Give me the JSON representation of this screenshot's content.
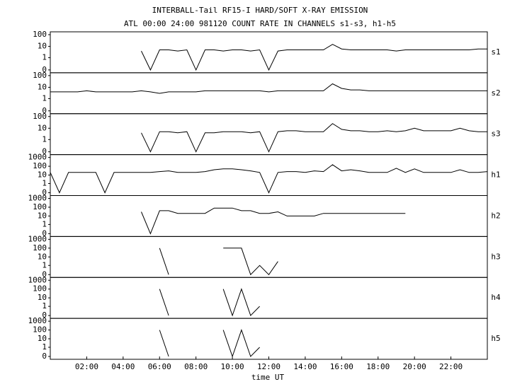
{
  "chart_data": [
    {
      "type": "line",
      "title": "INTERBALL-Tail RF15-I HARD/SOFT X-RAY EMISSION",
      "subtitle": "ATL 00:00 24:00 981120  COUNT RATE IN CHANNELS s1-s3, h1-h5",
      "label": "s1",
      "color": "#000000",
      "yscale": "log",
      "xlim": [
        0,
        24
      ],
      "ylim": [
        0,
        100
      ],
      "yticks": [
        0,
        1,
        10,
        100
      ],
      "x": [
        0,
        0.5,
        1,
        1.5,
        2,
        2.5,
        3,
        3.5,
        4,
        4.5,
        5,
        5.5,
        6,
        6.5,
        7,
        7.5,
        8,
        8.5,
        9,
        9.5,
        10,
        10.5,
        11,
        11.5,
        12,
        12.5,
        13,
        13.5,
        14,
        14.5,
        15,
        15.5,
        16,
        16.5,
        17,
        17.5,
        18,
        18.5,
        19,
        19.5,
        20,
        20.5,
        21,
        21.5,
        22,
        22.5,
        23,
        23.5,
        24
      ],
      "values": [
        null,
        null,
        null,
        null,
        null,
        null,
        null,
        null,
        null,
        null,
        4,
        0,
        5,
        5,
        4,
        5,
        0,
        5,
        5,
        4,
        5,
        5,
        4,
        5,
        0,
        4,
        5,
        5,
        5,
        5,
        5,
        15,
        6,
        5,
        5,
        5,
        5,
        5,
        4,
        5,
        5,
        5,
        5,
        5,
        5,
        5,
        5,
        6,
        6
      ]
    },
    {
      "type": "line",
      "label": "s2",
      "color": "#000000",
      "yscale": "log",
      "xlim": [
        0,
        24
      ],
      "ylim": [
        0,
        100
      ],
      "yticks": [
        0,
        1,
        10,
        100
      ],
      "x": [
        0,
        0.5,
        1,
        1.5,
        2,
        2.5,
        3,
        3.5,
        4,
        4.5,
        5,
        5.5,
        6,
        6.5,
        7,
        7.5,
        8,
        8.5,
        9,
        9.5,
        10,
        10.5,
        11,
        11.5,
        12,
        12.5,
        13,
        13.5,
        14,
        14.5,
        15,
        15.5,
        16,
        16.5,
        17,
        17.5,
        18,
        18.5,
        19,
        19.5,
        20,
        20.5,
        21,
        21.5,
        22,
        22.5,
        23,
        23.5,
        24
      ],
      "values": [
        4,
        4,
        4,
        4,
        5,
        4,
        4,
        4,
        4,
        4,
        5,
        4,
        3,
        4,
        4,
        4,
        4,
        5,
        5,
        5,
        5,
        5,
        5,
        5,
        4,
        5,
        5,
        5,
        5,
        5,
        5,
        20,
        8,
        6,
        6,
        5,
        5,
        5,
        5,
        5,
        5,
        5,
        5,
        5,
        5,
        5,
        5,
        5,
        5
      ]
    },
    {
      "type": "line",
      "label": "s3",
      "color": "#000000",
      "yscale": "log",
      "xlim": [
        0,
        24
      ],
      "ylim": [
        0,
        100
      ],
      "yticks": [
        0,
        1,
        10,
        100
      ],
      "x": [
        0,
        0.5,
        1,
        1.5,
        2,
        2.5,
        3,
        3.5,
        4,
        4.5,
        5,
        5.5,
        6,
        6.5,
        7,
        7.5,
        8,
        8.5,
        9,
        9.5,
        10,
        10.5,
        11,
        11.5,
        12,
        12.5,
        13,
        13.5,
        14,
        14.5,
        15,
        15.5,
        16,
        16.5,
        17,
        17.5,
        18,
        18.5,
        19,
        19.5,
        20,
        20.5,
        21,
        21.5,
        22,
        22.5,
        23,
        23.5,
        24
      ],
      "values": [
        null,
        null,
        null,
        null,
        null,
        null,
        null,
        null,
        null,
        null,
        4,
        0,
        5,
        5,
        4,
        5,
        0,
        4,
        4,
        5,
        5,
        5,
        4,
        5,
        0,
        5,
        6,
        6,
        5,
        5,
        5,
        25,
        8,
        6,
        6,
        5,
        5,
        6,
        5,
        6,
        10,
        6,
        6,
        6,
        6,
        10,
        6,
        5,
        5
      ]
    },
    {
      "type": "line",
      "label": "h1",
      "color": "#000000",
      "yscale": "log",
      "xlim": [
        0,
        24
      ],
      "ylim": [
        0,
        1000
      ],
      "yticks": [
        0,
        1,
        10,
        100,
        1000
      ],
      "x": [
        0,
        0.5,
        1,
        1.5,
        2,
        2.5,
        3,
        3.5,
        4,
        4.5,
        5,
        5.5,
        6,
        6.5,
        7,
        7.5,
        8,
        8.5,
        9,
        9.5,
        10,
        10.5,
        11,
        11.5,
        12,
        12.5,
        13,
        13.5,
        14,
        14.5,
        15,
        15.5,
        16,
        16.5,
        17,
        17.5,
        18,
        18.5,
        19,
        19.5,
        20,
        20.5,
        21,
        21.5,
        22,
        22.5,
        23,
        23.5,
        24
      ],
      "values": [
        20,
        0,
        20,
        20,
        20,
        20,
        0,
        20,
        20,
        20,
        20,
        20,
        25,
        30,
        20,
        20,
        20,
        25,
        40,
        50,
        50,
        40,
        30,
        20,
        0,
        20,
        25,
        25,
        20,
        30,
        25,
        150,
        30,
        40,
        30,
        20,
        20,
        20,
        60,
        20,
        50,
        20,
        20,
        20,
        20,
        40,
        20,
        20,
        25
      ]
    },
    {
      "type": "line",
      "label": "h2",
      "color": "#000000",
      "yscale": "log",
      "xlim": [
        0,
        24
      ],
      "ylim": [
        0,
        1000
      ],
      "yticks": [
        0,
        1,
        10,
        100,
        1000
      ],
      "x": [
        0,
        0.5,
        1,
        1.5,
        2,
        2.5,
        3,
        3.5,
        4,
        4.5,
        5,
        5.5,
        6,
        6.5,
        7,
        7.5,
        8,
        8.5,
        9,
        9.5,
        10,
        10.5,
        11,
        11.5,
        12,
        12.5,
        13,
        13.5,
        14,
        14.5,
        15,
        15.5,
        16,
        16.5,
        17,
        17.5,
        18,
        18.5,
        19,
        19.5,
        20,
        20.5,
        21,
        21.5,
        22,
        22.5,
        23,
        23.5,
        24
      ],
      "values": [
        null,
        null,
        null,
        null,
        null,
        null,
        null,
        null,
        null,
        null,
        30,
        0,
        40,
        40,
        20,
        20,
        20,
        20,
        80,
        80,
        80,
        40,
        40,
        20,
        20,
        30,
        10,
        10,
        10,
        10,
        20,
        20,
        20,
        20,
        20,
        20,
        20,
        20,
        20,
        20,
        null,
        null,
        null,
        null,
        null,
        null,
        null,
        null,
        null
      ]
    },
    {
      "type": "line",
      "label": "h3",
      "color": "#000000",
      "yscale": "log",
      "xlim": [
        0,
        24
      ],
      "ylim": [
        0,
        1000
      ],
      "yticks": [
        0,
        1,
        10,
        100,
        1000
      ],
      "x": [
        0,
        0.5,
        1,
        1.5,
        2,
        2.5,
        3,
        3.5,
        4,
        4.5,
        5,
        5.5,
        6,
        6.5,
        7,
        7.5,
        8,
        8.5,
        9,
        9.5,
        10,
        10.5,
        11,
        11.5,
        12,
        12.5,
        13,
        13.5,
        14,
        14.5,
        15,
        15.5,
        16,
        16.5,
        17,
        17.5,
        18,
        18.5,
        19,
        19.5,
        20,
        20.5,
        21,
        21.5,
        22,
        22.5,
        23,
        23.5,
        24
      ],
      "values": [
        null,
        null,
        null,
        null,
        null,
        null,
        null,
        null,
        null,
        null,
        null,
        null,
        100,
        0,
        null,
        null,
        null,
        null,
        null,
        100,
        100,
        100,
        0,
        1,
        0,
        3,
        null,
        null,
        null,
        null,
        null,
        null,
        null,
        null,
        null,
        null,
        null,
        null,
        null,
        null,
        null,
        null,
        null,
        null,
        null,
        null,
        null,
        null,
        null
      ]
    },
    {
      "type": "line",
      "label": "h4",
      "color": "#000000",
      "yscale": "log",
      "xlim": [
        0,
        24
      ],
      "ylim": [
        0,
        1000
      ],
      "yticks": [
        0,
        1,
        10,
        100,
        1000
      ],
      "x": [
        0,
        0.5,
        1,
        1.5,
        2,
        2.5,
        3,
        3.5,
        4,
        4.5,
        5,
        5.5,
        6,
        6.5,
        7,
        7.5,
        8,
        8.5,
        9,
        9.5,
        10,
        10.5,
        11,
        11.5,
        12,
        12.5,
        13,
        13.5,
        14,
        14.5,
        15,
        15.5,
        16,
        16.5,
        17,
        17.5,
        18,
        18.5,
        19,
        19.5,
        20,
        20.5,
        21,
        21.5,
        22,
        22.5,
        23,
        23.5,
        24
      ],
      "values": [
        null,
        null,
        null,
        null,
        null,
        null,
        null,
        null,
        null,
        null,
        null,
        null,
        100,
        0,
        null,
        null,
        null,
        null,
        null,
        100,
        0,
        100,
        0,
        1,
        null,
        null,
        null,
        null,
        null,
        null,
        null,
        null,
        null,
        null,
        null,
        null,
        null,
        null,
        null,
        null,
        null,
        null,
        null,
        null,
        null,
        null,
        null,
        null,
        null
      ]
    },
    {
      "type": "line",
      "label": "h5",
      "color": "#000000",
      "yscale": "log",
      "xlim": [
        0,
        24
      ],
      "ylim": [
        0,
        1000
      ],
      "yticks": [
        0,
        1,
        10,
        100,
        1000
      ],
      "xlabel": "time UT",
      "xticks": [
        {
          "value": 2,
          "label": "02:00"
        },
        {
          "value": 4,
          "label": "04:00"
        },
        {
          "value": 6,
          "label": "06:00"
        },
        {
          "value": 8,
          "label": "08:00"
        },
        {
          "value": 10,
          "label": "10:00"
        },
        {
          "value": 12,
          "label": "12:00"
        },
        {
          "value": 14,
          "label": "14:00"
        },
        {
          "value": 16,
          "label": "16:00"
        },
        {
          "value": 18,
          "label": "18:00"
        },
        {
          "value": 20,
          "label": "20:00"
        },
        {
          "value": 22,
          "label": "22:00"
        }
      ],
      "x": [
        0,
        0.5,
        1,
        1.5,
        2,
        2.5,
        3,
        3.5,
        4,
        4.5,
        5,
        5.5,
        6,
        6.5,
        7,
        7.5,
        8,
        8.5,
        9,
        9.5,
        10,
        10.5,
        11,
        11.5,
        12,
        12.5,
        13,
        13.5,
        14,
        14.5,
        15,
        15.5,
        16,
        16.5,
        17,
        17.5,
        18,
        18.5,
        19,
        19.5,
        20,
        20.5,
        21,
        21.5,
        22,
        22.5,
        23,
        23.5,
        24
      ],
      "values": [
        null,
        null,
        null,
        null,
        null,
        null,
        null,
        null,
        null,
        null,
        null,
        null,
        100,
        0,
        null,
        null,
        null,
        null,
        null,
        100,
        0,
        100,
        0,
        1,
        null,
        null,
        null,
        null,
        null,
        null,
        null,
        null,
        null,
        null,
        null,
        null,
        null,
        null,
        null,
        null,
        null,
        null,
        null,
        null,
        null,
        null,
        null,
        null,
        null
      ]
    }
  ]
}
